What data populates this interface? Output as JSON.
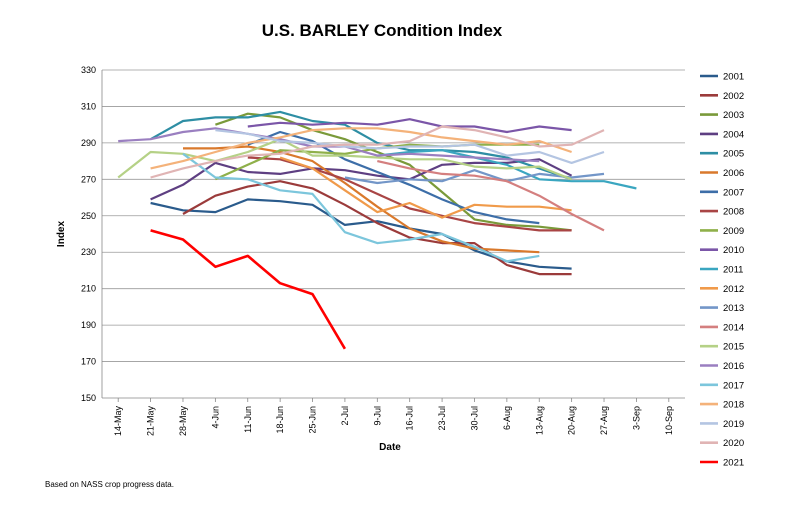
{
  "chart_data": {
    "type": "line",
    "title": "U.S. BARLEY Condition Index",
    "xlabel": "Date",
    "ylabel": "Index",
    "note": "Based on NASS crop progress data.",
    "ylim": [
      150,
      330
    ],
    "yticks": [
      150,
      170,
      190,
      210,
      230,
      250,
      270,
      290,
      310,
      330
    ],
    "categories": [
      "14-May",
      "21-May",
      "28-May",
      "4-Jun",
      "11-Jun",
      "18-Jun",
      "25-Jun",
      "2-Jul",
      "9-Jul",
      "16-Jul",
      "23-Jul",
      "30-Jul",
      "6-Aug",
      "13-Aug",
      "20-Aug",
      "27-Aug",
      "3-Sep",
      "10-Sep"
    ],
    "grid": true,
    "legend_position": "right",
    "series": [
      {
        "name": "2001",
        "color": "#2a5b8c",
        "values": [
          null,
          257,
          253,
          252,
          259,
          258,
          256,
          245,
          247,
          243,
          240,
          231,
          225,
          222,
          221,
          null,
          null,
          null
        ]
      },
      {
        "name": "2002",
        "color": "#9b3b3b",
        "values": [
          null,
          null,
          251,
          261,
          266,
          269,
          265,
          256,
          246,
          238,
          235,
          235,
          223,
          218,
          218,
          null,
          null,
          null
        ]
      },
      {
        "name": "2003",
        "color": "#7a9a3a",
        "values": [
          null,
          null,
          null,
          300,
          306,
          304,
          297,
          292,
          285,
          278,
          263,
          248,
          245,
          244,
          242,
          null,
          null,
          null
        ]
      },
      {
        "name": "2004",
        "color": "#5e3f82",
        "values": [
          null,
          259,
          267,
          279,
          274,
          273,
          276,
          275,
          272,
          270,
          278,
          279,
          279,
          281,
          272,
          null,
          null,
          null
        ]
      },
      {
        "name": "2005",
        "color": "#2e8ea4",
        "values": [
          null,
          292,
          302,
          304,
          304,
          307,
          302,
          300,
          290,
          286,
          286,
          285,
          282,
          276,
          270,
          null,
          null,
          null
        ]
      },
      {
        "name": "2006",
        "color": "#d9792c",
        "values": [
          null,
          null,
          287,
          287,
          288,
          285,
          280,
          268,
          255,
          243,
          236,
          232,
          231,
          230,
          null,
          null,
          null,
          null
        ]
      },
      {
        "name": "2007",
        "color": "#3d6ea8",
        "values": [
          null,
          null,
          null,
          null,
          289,
          296,
          291,
          281,
          274,
          267,
          259,
          252,
          248,
          246,
          null,
          null,
          null,
          null
        ]
      },
      {
        "name": "2008",
        "color": "#a94545",
        "values": [
          null,
          null,
          null,
          null,
          282,
          281,
          276,
          270,
          262,
          254,
          250,
          246,
          244,
          242,
          242,
          null,
          null,
          null
        ]
      },
      {
        "name": "2009",
        "color": "#8fb04a",
        "values": [
          null,
          null,
          null,
          270,
          278,
          286,
          285,
          284,
          287,
          289,
          288,
          289,
          289,
          289,
          null,
          null,
          null,
          null
        ]
      },
      {
        "name": "2010",
        "color": "#7b56a8",
        "values": [
          null,
          null,
          null,
          null,
          299,
          301,
          300,
          301,
          300,
          303,
          299,
          299,
          296,
          299,
          297,
          null,
          null,
          null
        ]
      },
      {
        "name": "2011",
        "color": "#3aa6c0",
        "values": [
          null,
          null,
          null,
          null,
          null,
          null,
          null,
          null,
          283,
          285,
          286,
          282,
          278,
          270,
          269,
          269,
          265,
          null
        ]
      },
      {
        "name": "2012",
        "color": "#f09a4a",
        "values": [
          null,
          null,
          null,
          null,
          null,
          282,
          276,
          264,
          252,
          257,
          249,
          256,
          255,
          255,
          253,
          null,
          null,
          null
        ]
      },
      {
        "name": "2013",
        "color": "#7396c8",
        "values": [
          null,
          null,
          null,
          null,
          null,
          null,
          null,
          271,
          268,
          270,
          269,
          275,
          269,
          273,
          271,
          273,
          null,
          null
        ]
      },
      {
        "name": "2014",
        "color": "#d47f7f",
        "values": [
          null,
          null,
          null,
          null,
          null,
          null,
          null,
          null,
          280,
          276,
          273,
          272,
          269,
          261,
          251,
          242,
          null,
          null
        ]
      },
      {
        "name": "2015",
        "color": "#b5d186",
        "values": [
          271,
          285,
          284,
          280,
          285,
          292,
          283,
          283,
          282,
          281,
          281,
          277,
          276,
          277,
          270,
          null,
          null,
          null
        ]
      },
      {
        "name": "2016",
        "color": "#9a7fc0",
        "values": [
          291,
          292,
          296,
          298,
          295,
          292,
          288,
          288,
          283,
          284,
          283,
          282,
          281,
          280,
          null,
          null,
          null,
          null
        ]
      },
      {
        "name": "2017",
        "color": "#7cc6dc",
        "values": [
          null,
          null,
          284,
          271,
          270,
          264,
          262,
          241,
          235,
          237,
          240,
          233,
          225,
          228,
          null,
          null,
          null,
          null
        ]
      },
      {
        "name": "2018",
        "color": "#f4b27a",
        "values": [
          null,
          276,
          280,
          285,
          290,
          293,
          297,
          298,
          298,
          296,
          293,
          291,
          289,
          291,
          285,
          null,
          null,
          null
        ]
      },
      {
        "name": "2019",
        "color": "#b4c5e2",
        "values": [
          null,
          null,
          null,
          297,
          295,
          291,
          290,
          288,
          287,
          288,
          288,
          289,
          283,
          285,
          279,
          285,
          null,
          null
        ]
      },
      {
        "name": "2020",
        "color": "#e0b4b4",
        "values": [
          null,
          271,
          276,
          280,
          283,
          284,
          288,
          289,
          289,
          291,
          299,
          297,
          293,
          288,
          289,
          297,
          null,
          null
        ]
      },
      {
        "name": "2021",
        "color": "#ff0000",
        "values": [
          null,
          242,
          237,
          222,
          228,
          213,
          207,
          177,
          null,
          null,
          null,
          null,
          null,
          null,
          null,
          null,
          null,
          null
        ]
      }
    ]
  }
}
